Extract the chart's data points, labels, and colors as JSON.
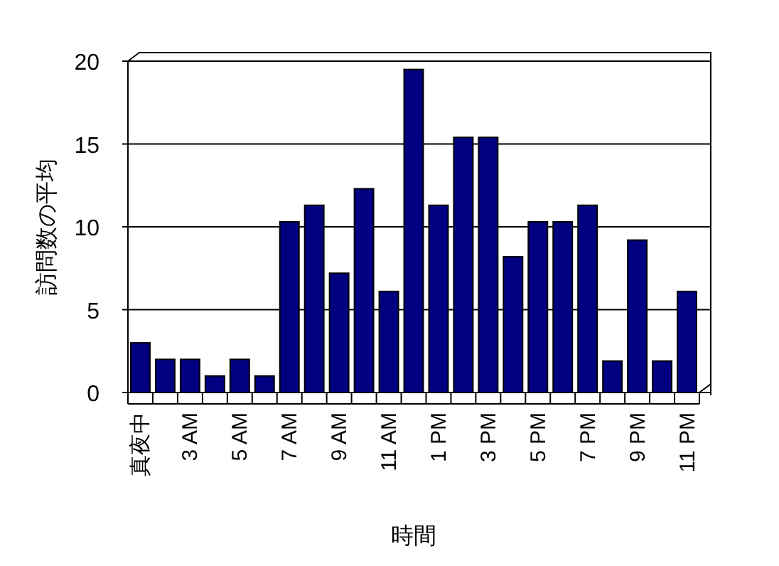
{
  "chart_data": {
    "type": "bar",
    "xlabel": "時間",
    "ylabel": "訪問数の平均",
    "categories": [
      "真夜中",
      null,
      "3 AM",
      null,
      "5 AM",
      null,
      "7 AM",
      null,
      "9 AM",
      null,
      "11 AM",
      null,
      "1 PM",
      null,
      "3 PM",
      null,
      "5 PM",
      null,
      "7 PM",
      null,
      "9 PM",
      null,
      "11 PM"
    ],
    "values": [
      3,
      2,
      2,
      1,
      2,
      1,
      10.3,
      11.3,
      7.2,
      12.3,
      6.1,
      19.5,
      11.3,
      15.4,
      15.4,
      8.2,
      10.3,
      10.3,
      11.3,
      1.9,
      9.2,
      1.9,
      6.1
    ],
    "color": "#000080",
    "ylim": [
      0,
      20
    ],
    "yticks": [
      0,
      5,
      10,
      15,
      20
    ],
    "grid": "y"
  }
}
